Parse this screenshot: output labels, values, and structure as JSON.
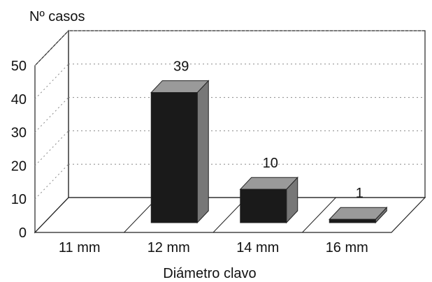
{
  "chart_data": {
    "type": "bar",
    "ylabel": "Nº casos",
    "xlabel": "Diámetro clavo",
    "categories": [
      "11 mm",
      "12 mm",
      "14 mm",
      "16 mm"
    ],
    "values": [
      0,
      39,
      10,
      1
    ],
    "data_labels": [
      "",
      "39",
      "10",
      "1"
    ],
    "ylim": [
      0,
      50
    ],
    "yticks": [
      "0",
      "10",
      "20",
      "30",
      "40",
      "50"
    ],
    "grid": true,
    "three_d": true,
    "colors": {
      "bar_front": "#1a1a1a",
      "bar_side": "#777777",
      "bar_top": "#9a9a9a",
      "grid": "#888888",
      "axis": "#222222"
    }
  }
}
